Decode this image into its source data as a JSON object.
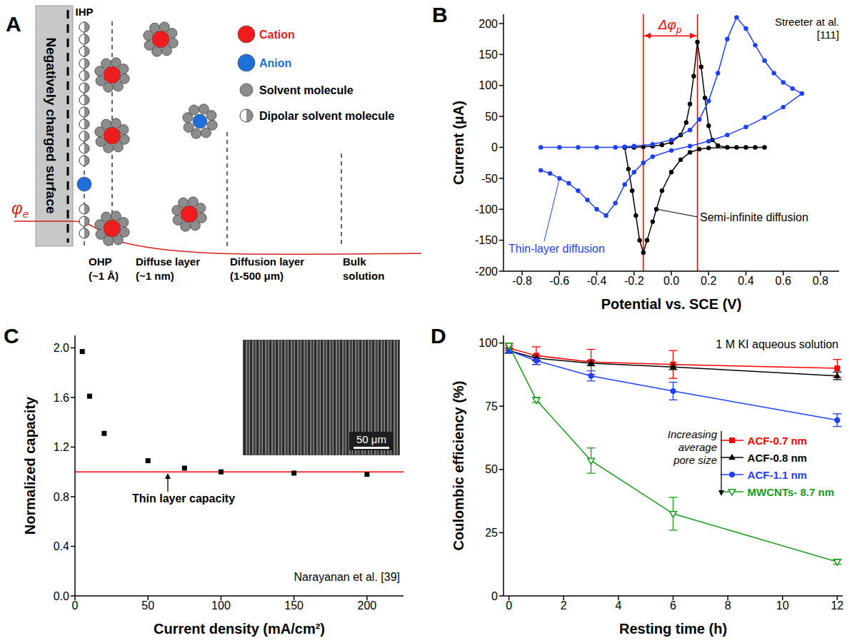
{
  "diagram": {
    "panel_label": "A",
    "surface_label": "Negatively charged surface",
    "plane_label": "IHP",
    "potential_label": "φe",
    "key": [
      {
        "label": "Cation",
        "color": "#ee1c1c"
      },
      {
        "label": "Anion",
        "color": "#1e6fd9"
      },
      {
        "label": "Solvent molecule",
        "color": "#8c8c8c"
      },
      {
        "label": "Dipolar solvent molecule",
        "color": "#8c8c8c"
      }
    ],
    "regions": [
      {
        "name": "OHP",
        "extent": "(~1 Å)"
      },
      {
        "name": "Diffuse layer",
        "extent": "(~1 nm)"
      },
      {
        "name": "Diffusion layer",
        "extent": "(1-500 μm)"
      },
      {
        "name": "Bulk solution"
      }
    ]
  },
  "chart_data": [
    {
      "panel_label": "B",
      "type": "line",
      "x_label": "Potential vs. SCE (V)",
      "y_label": "Current (μA)",
      "source": "Streeter at al. [111]",
      "xlim": [
        -0.9,
        0.9
      ],
      "xticks": [
        -0.8,
        -0.6,
        -0.4,
        -0.2,
        {
          "value": 0,
          "label": "0.0"
        },
        0.2,
        0.4,
        0.6,
        0.8
      ],
      "ylim": [
        -200,
        215
      ],
      "yticks": [
        -200,
        -150,
        -100,
        -50,
        0,
        50,
        100,
        150,
        200
      ],
      "peak_separation": {
        "label": "Δφp",
        "x": [
          -0.15,
          0.14
        ],
        "y": 180,
        "color": "#ff0000"
      },
      "series": [
        {
          "name": "Semi-infinite diffusion",
          "color": "#000000",
          "marker": "circle",
          "x": [
            -0.25,
            -0.2,
            -0.15,
            -0.1,
            -0.05,
            0,
            0.05,
            0.08,
            0.1,
            0.12,
            0.14,
            0.16,
            0.18,
            0.2,
            0.22,
            0.25,
            0.3,
            0.35,
            0.4,
            0.45,
            0.5,
            0.2,
            0.15,
            0.1,
            0.05,
            0,
            -0.05,
            -0.08,
            -0.1,
            -0.13,
            -0.15,
            -0.17,
            -0.19,
            -0.21,
            -0.23,
            -0.25
          ],
          "values": [
            0,
            0,
            1,
            2,
            4,
            8,
            20,
            40,
            70,
            115,
            170,
            130,
            80,
            35,
            12,
            3,
            0,
            0,
            0,
            0,
            0,
            -1,
            -3,
            -8,
            -20,
            -40,
            -70,
            -100,
            -120,
            -150,
            -170,
            -150,
            -110,
            -70,
            -35,
            0
          ]
        },
        {
          "name": "Thin-layer diffusion",
          "color": "#1f3fff",
          "marker": "circle",
          "x": [
            -0.7,
            -0.6,
            -0.5,
            -0.4,
            -0.3,
            -0.25,
            -0.2,
            -0.1,
            0,
            0.1,
            0.15,
            0.2,
            0.25,
            0.3,
            0.35,
            0.4,
            0.45,
            0.5,
            0.55,
            0.6,
            0.65,
            0.7,
            0.6,
            0.5,
            0.4,
            0.3,
            0.2,
            0.1,
            0,
            -0.1,
            -0.15,
            -0.2,
            -0.25,
            -0.3,
            -0.35,
            -0.4,
            -0.45,
            -0.5,
            -0.55,
            -0.6,
            -0.65,
            -0.7
          ],
          "values": [
            0,
            0,
            0,
            0,
            0,
            1,
            2,
            5,
            12,
            28,
            45,
            75,
            120,
            175,
            210,
            192,
            165,
            140,
            120,
            105,
            95,
            87,
            65,
            48,
            33,
            20,
            10,
            2,
            -5,
            -15,
            -25,
            -40,
            -60,
            -90,
            -110,
            -100,
            -85,
            -70,
            -58,
            -50,
            -42,
            -37
          ]
        }
      ]
    },
    {
      "panel_label": "C",
      "type": "scatter",
      "x_label": "Current density (mA/cm²)",
      "y_label": "Normalized capacity",
      "source": "Narayanan et al. [39]",
      "color": "#000000",
      "marker": "square",
      "x": [
        5,
        10,
        20,
        50,
        75,
        100,
        150,
        200
      ],
      "values": [
        1.97,
        1.61,
        1.31,
        1.09,
        1.03,
        1.0,
        0.99,
        0.98
      ],
      "xlim": [
        0,
        225
      ],
      "xticks": [
        0,
        50,
        100,
        150,
        200
      ],
      "ylim": [
        0,
        2.1
      ],
      "yticks": [
        {
          "value": 0,
          "label": "0.0"
        },
        0.4,
        0.8,
        1.2,
        1.6,
        {
          "value": 2,
          "label": "2.0"
        }
      ],
      "reference_line": {
        "y": 1,
        "label": "Thin layer capacity",
        "color": "#ff0000"
      },
      "inset_scale_bar": "50 μm"
    },
    {
      "panel_label": "D",
      "type": "line",
      "x_label": "Resting time (h)",
      "y_label": "Coulombic efficiency (%)",
      "condition": "1 M KI aqueous solution",
      "trend_note": "Increasing average pore size",
      "legend": "right",
      "x": [
        0,
        1,
        3,
        6,
        12
      ],
      "xlim": [
        -0.2,
        12.2
      ],
      "xticks": [
        0,
        2,
        4,
        6,
        8,
        10,
        12
      ],
      "ylim": [
        0,
        103
      ],
      "yticks": [
        0,
        25,
        50,
        75,
        100
      ],
      "series": [
        {
          "name": "ACF-0.7 nm",
          "color": "#ff0000",
          "marker": "square",
          "values": [
            98,
            95,
            92.5,
            91.5,
            90
          ],
          "errors": [
            1,
            3.5,
            5,
            5.5,
            3.5
          ]
        },
        {
          "name": "ACF-0.8 nm",
          "color": "#000000",
          "marker": "triangle",
          "values": [
            97,
            94,
            92,
            90.5,
            87
          ],
          "errors": [
            1,
            1,
            1,
            1,
            1.5
          ]
        },
        {
          "name": "ACF-1.1 nm",
          "color": "#1f3fff",
          "marker": "circle",
          "values": [
            97,
            93,
            87,
            81,
            69.5
          ],
          "errors": [
            1,
            1.5,
            2,
            3.5,
            2.5
          ]
        },
        {
          "name": "MWCNTs- 8.7 nm",
          "color": "#1a9a1a",
          "marker": "triangle-down-open",
          "values": [
            99,
            77.5,
            53.5,
            32.5,
            13.5
          ],
          "errors": [
            1,
            1,
            5,
            6.5,
            1
          ]
        }
      ]
    }
  ]
}
